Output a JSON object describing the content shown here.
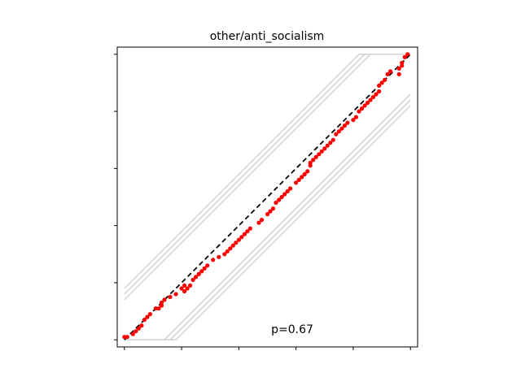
{
  "chart_data": {
    "type": "scatter",
    "title": "other/anti_socialism",
    "xlabel": "",
    "ylabel": "",
    "xlim": [
      -0.025,
      1.025
    ],
    "ylim": [
      -0.025,
      1.025
    ],
    "x_ticks": [
      0,
      0.2,
      0.4,
      0.6,
      0.8,
      1.0
    ],
    "y_ticks": [
      0,
      0.2,
      0.4,
      0.6,
      0.8,
      1.0
    ],
    "tick_labels_visible": false,
    "grid": false,
    "annotation": "p=0.67",
    "reference_line": {
      "style": "dashed",
      "color": "#000000",
      "from": [
        0,
        0
      ],
      "to": [
        1,
        1
      ]
    },
    "band_color": "#d3d3d3",
    "band_offsets": [
      0.14,
      0.16,
      0.18
    ],
    "series": [
      {
        "color": "#ff0000",
        "marker": "circle",
        "points": [
          [
            0.0,
            0.01
          ],
          [
            0.01,
            0.01
          ],
          [
            0.03,
            0.02
          ],
          [
            0.04,
            0.03
          ],
          [
            0.05,
            0.04
          ],
          [
            0.06,
            0.05
          ],
          [
            0.07,
            0.07
          ],
          [
            0.08,
            0.08
          ],
          [
            0.09,
            0.09
          ],
          [
            0.11,
            0.11
          ],
          [
            0.12,
            0.11
          ],
          [
            0.13,
            0.12
          ],
          [
            0.13,
            0.13
          ],
          [
            0.14,
            0.14
          ],
          [
            0.16,
            0.15
          ],
          [
            0.18,
            0.16
          ],
          [
            0.2,
            0.18
          ],
          [
            0.21,
            0.19
          ],
          [
            0.21,
            0.17
          ],
          [
            0.22,
            0.18
          ],
          [
            0.23,
            0.19
          ],
          [
            0.24,
            0.21
          ],
          [
            0.25,
            0.22
          ],
          [
            0.26,
            0.23
          ],
          [
            0.27,
            0.24
          ],
          [
            0.28,
            0.25
          ],
          [
            0.29,
            0.26
          ],
          [
            0.31,
            0.28
          ],
          [
            0.33,
            0.29
          ],
          [
            0.35,
            0.3
          ],
          [
            0.36,
            0.31
          ],
          [
            0.37,
            0.32
          ],
          [
            0.38,
            0.33
          ],
          [
            0.39,
            0.34
          ],
          [
            0.4,
            0.35
          ],
          [
            0.41,
            0.36
          ],
          [
            0.42,
            0.37
          ],
          [
            0.43,
            0.38
          ],
          [
            0.44,
            0.39
          ],
          [
            0.47,
            0.41
          ],
          [
            0.48,
            0.42
          ],
          [
            0.5,
            0.44
          ],
          [
            0.51,
            0.45
          ],
          [
            0.52,
            0.46
          ],
          [
            0.53,
            0.48
          ],
          [
            0.54,
            0.49
          ],
          [
            0.55,
            0.5
          ],
          [
            0.56,
            0.51
          ],
          [
            0.57,
            0.52
          ],
          [
            0.58,
            0.53
          ],
          [
            0.6,
            0.55
          ],
          [
            0.61,
            0.56
          ],
          [
            0.62,
            0.57
          ],
          [
            0.63,
            0.58
          ],
          [
            0.64,
            0.59
          ],
          [
            0.65,
            0.61
          ],
          [
            0.65,
            0.62
          ],
          [
            0.66,
            0.63
          ],
          [
            0.67,
            0.64
          ],
          [
            0.68,
            0.65
          ],
          [
            0.69,
            0.66
          ],
          [
            0.7,
            0.67
          ],
          [
            0.71,
            0.68
          ],
          [
            0.72,
            0.69
          ],
          [
            0.73,
            0.7
          ],
          [
            0.74,
            0.72
          ],
          [
            0.75,
            0.73
          ],
          [
            0.76,
            0.74
          ],
          [
            0.77,
            0.75
          ],
          [
            0.78,
            0.76
          ],
          [
            0.8,
            0.77
          ],
          [
            0.81,
            0.78
          ],
          [
            0.82,
            0.8
          ],
          [
            0.83,
            0.81
          ],
          [
            0.84,
            0.82
          ],
          [
            0.85,
            0.83
          ],
          [
            0.86,
            0.84
          ],
          [
            0.87,
            0.85
          ],
          [
            0.88,
            0.86
          ],
          [
            0.89,
            0.87
          ],
          [
            0.89,
            0.89
          ],
          [
            0.9,
            0.9
          ],
          [
            0.91,
            0.91
          ],
          [
            0.92,
            0.93
          ],
          [
            0.93,
            0.94
          ],
          [
            0.96,
            0.93
          ],
          [
            0.96,
            0.95
          ],
          [
            0.97,
            0.96
          ],
          [
            0.97,
            0.97
          ],
          [
            0.98,
            0.99
          ],
          [
            0.99,
            1.0
          ]
        ]
      }
    ]
  }
}
